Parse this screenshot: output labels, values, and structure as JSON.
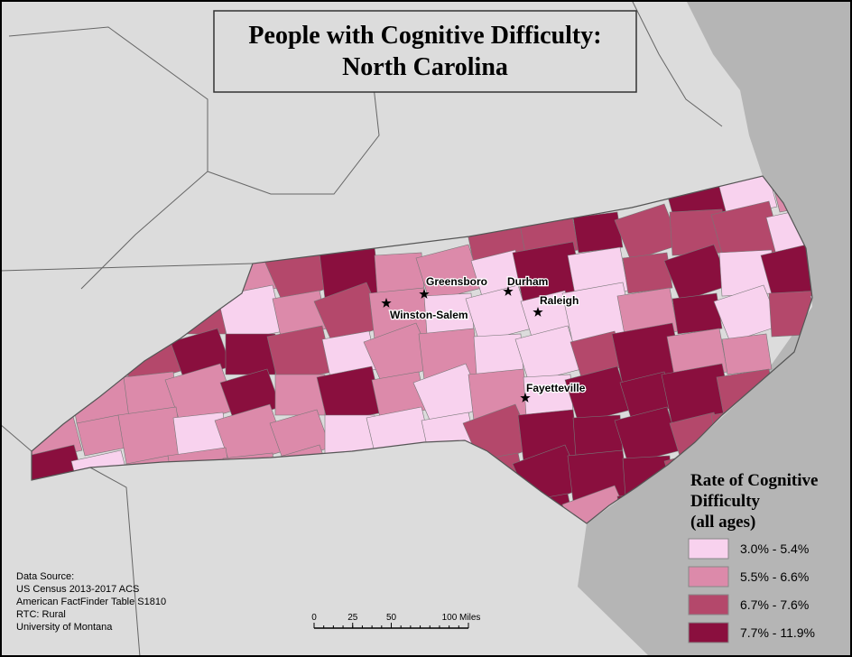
{
  "title": [
    "People with Cognitive Difficulty:",
    "North Carolina"
  ],
  "legend": {
    "title": [
      "Rate of Cognitive",
      "Difficulty",
      "(all ages)"
    ],
    "items": [
      {
        "label": "3.0% - 5.4%",
        "color": "#f8d2ee"
      },
      {
        "label": "5.5% - 6.6%",
        "color": "#dc8aaa"
      },
      {
        "label": "6.7% - 7.6%",
        "color": "#b4486b"
      },
      {
        "label": "7.7% - 11.9%",
        "color": "#8a0f3e"
      }
    ]
  },
  "cities": [
    "Greensboro",
    "Durham",
    "Raleigh",
    "Winston-Salem",
    "Fayetteville"
  ],
  "source": [
    "Data Source:",
    "US Census 2013-2017 ACS",
    "American FactFinder Table S1810",
    "RTC: Rural",
    "University of Montana"
  ],
  "scale_bar": {
    "ticks": [
      0,
      25,
      50,
      {
        "value": 100,
        "label": "100 Miles"
      }
    ]
  }
}
